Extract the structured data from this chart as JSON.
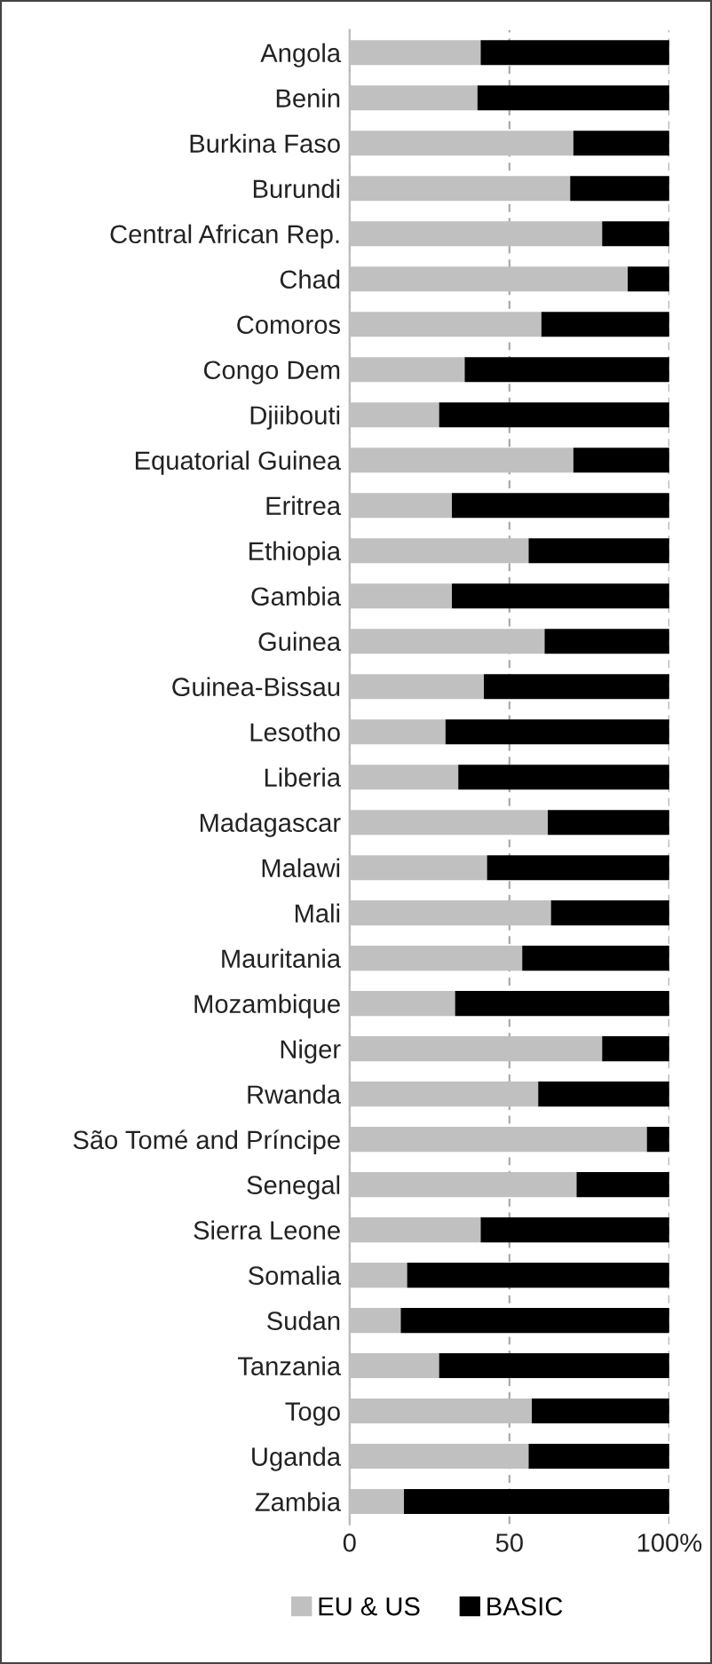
{
  "chart_data": {
    "type": "bar",
    "orientation": "horizontal",
    "stacked": true,
    "categories": [
      "Angola",
      "Benin",
      "Burkina Faso",
      "Burundi",
      "Central African Rep.",
      "Chad",
      "Comoros",
      "Congo Dem",
      "Djiibouti",
      "Equatorial Guinea",
      "Eritrea",
      "Ethiopia",
      "Gambia",
      "Guinea",
      "Guinea-Bissau",
      "Lesotho",
      "Liberia",
      "Madagascar",
      "Malawi",
      "Mali",
      "Mauritania",
      "Mozambique",
      "Niger",
      "Rwanda",
      "São Tomé and Príncipe",
      "Senegal",
      "Sierra Leone",
      "Somalia",
      "Sudan",
      "Tanzania",
      "Togo",
      "Uganda",
      "Zambia"
    ],
    "series": [
      {
        "name": "EU & US",
        "color": "#c0c0c0",
        "values": [
          41,
          40,
          70,
          69,
          79,
          87,
          60,
          36,
          28,
          70,
          32,
          56,
          32,
          61,
          42,
          30,
          34,
          62,
          43,
          63,
          54,
          33,
          79,
          59,
          93,
          71,
          41,
          18,
          16,
          28,
          57,
          56,
          17
        ]
      },
      {
        "name": "BASIC",
        "color": "#000000",
        "values": [
          59,
          60,
          30,
          31,
          21,
          13,
          40,
          64,
          72,
          30,
          68,
          44,
          68,
          39,
          58,
          70,
          66,
          38,
          57,
          37,
          46,
          67,
          21,
          41,
          7,
          29,
          59,
          82,
          84,
          72,
          43,
          44,
          83
        ]
      }
    ],
    "xlim": [
      0,
      100
    ],
    "xticks": [
      0,
      50,
      {
        "value": 100,
        "label": "100%"
      }
    ],
    "grid": "x",
    "legend": "bottom"
  }
}
